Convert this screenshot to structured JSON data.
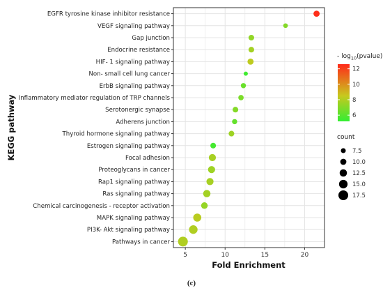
{
  "chart_data": {
    "type": "scatter",
    "title": "",
    "xlabel": "Fold Enrichment",
    "ylabel": "KEGG pathway",
    "xlim": [
      3.5,
      22.5
    ],
    "xticks": [
      5,
      10,
      15,
      20
    ],
    "grid": true,
    "legend_position": "right",
    "color_legend": {
      "title_prefix": "- log",
      "title_sub": "10",
      "title_suffix": "(pvalue)",
      "ticks": [
        6,
        8,
        10,
        12
      ],
      "range": [
        5.2,
        12.6
      ],
      "low_color": "#33ee33",
      "mid_color": "#c8c81e",
      "high_color": "#ff2a1a"
    },
    "size_legend": {
      "title": "count",
      "values": [
        "7.5",
        "10.0",
        "12.5",
        "15.0",
        "17.5"
      ],
      "range": [
        6,
        18
      ]
    },
    "points": [
      {
        "pathway": "EGFR tyrosine kinase inhibitor resistance",
        "fold_enrichment": 21.5,
        "neg_log10_pvalue": 12.5,
        "count": 10
      },
      {
        "pathway": "VEGF signaling pathway",
        "fold_enrichment": 17.6,
        "neg_log10_pvalue": 7.0,
        "count": 7
      },
      {
        "pathway": "Gap junction",
        "fold_enrichment": 13.3,
        "neg_log10_pvalue": 7.3,
        "count": 9
      },
      {
        "pathway": "Endocrine resistance",
        "fold_enrichment": 13.3,
        "neg_log10_pvalue": 7.7,
        "count": 9
      },
      {
        "pathway": "HIF- 1 signaling pathway",
        "fold_enrichment": 13.2,
        "neg_log10_pvalue": 8.3,
        "count": 10
      },
      {
        "pathway": "Non- small cell lung cancer",
        "fold_enrichment": 12.6,
        "neg_log10_pvalue": 5.5,
        "count": 6
      },
      {
        "pathway": "ErbB signaling pathway",
        "fold_enrichment": 12.3,
        "neg_log10_pvalue": 6.4,
        "count": 8
      },
      {
        "pathway": "Inflammatory mediator regulation of TRP channels",
        "fold_enrichment": 12.0,
        "neg_log10_pvalue": 6.8,
        "count": 8.5
      },
      {
        "pathway": "Serotonergic synapse",
        "fold_enrichment": 11.3,
        "neg_log10_pvalue": 7.0,
        "count": 9
      },
      {
        "pathway": "Adherens junction",
        "fold_enrichment": 11.2,
        "neg_log10_pvalue": 6.3,
        "count": 8
      },
      {
        "pathway": "Thyroid hormone signaling pathway",
        "fold_enrichment": 10.8,
        "neg_log10_pvalue": 7.6,
        "count": 9
      },
      {
        "pathway": "Estrogen signaling pathway",
        "fold_enrichment": 8.5,
        "neg_log10_pvalue": 5.6,
        "count": 9
      },
      {
        "pathway": "Focal adhesion",
        "fold_enrichment": 8.4,
        "neg_log10_pvalue": 7.8,
        "count": 12
      },
      {
        "pathway": "Proteoglycans in cancer",
        "fold_enrichment": 8.3,
        "neg_log10_pvalue": 7.6,
        "count": 12
      },
      {
        "pathway": "Rap1 signaling pathway",
        "fold_enrichment": 8.1,
        "neg_log10_pvalue": 7.8,
        "count": 12
      },
      {
        "pathway": "Ras signaling pathway",
        "fold_enrichment": 7.7,
        "neg_log10_pvalue": 7.7,
        "count": 12.5
      },
      {
        "pathway": "Chemical carcinogenesis -  receptor activation",
        "fold_enrichment": 7.4,
        "neg_log10_pvalue": 7.4,
        "count": 11
      },
      {
        "pathway": "MAPK signaling pathway",
        "fold_enrichment": 6.5,
        "neg_log10_pvalue": 8.2,
        "count": 14
      },
      {
        "pathway": "PI3K- Akt signaling pathway",
        "fold_enrichment": 6.0,
        "neg_log10_pvalue": 8.0,
        "count": 15
      },
      {
        "pathway": "Pathways in cancer",
        "fold_enrichment": 4.7,
        "neg_log10_pvalue": 8.0,
        "count": 17.5
      }
    ]
  },
  "caption": "(c)"
}
